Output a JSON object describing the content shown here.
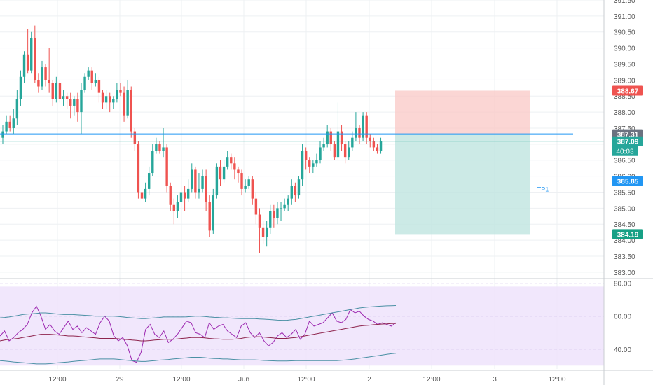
{
  "colors": {
    "bull": "#26a69a",
    "bear": "#ef5350",
    "support_line": "#2196f3",
    "price_line": "#26a69a",
    "stop_zone": "#f9c8c6",
    "target_zone": "#bfe5e0",
    "tp_line": "#2196f3",
    "rsi_line": "#9c27b0",
    "rsi_band": "#4a90a4",
    "rsi_bg": "#ede1fb",
    "axis_text": "#555555",
    "grid": "#eef0f3"
  },
  "chart_data": [
    {
      "type": "candlestick",
      "ylim": [
        382.8,
        391.5
      ],
      "y_ticks": [
        "383.00",
        "383.50",
        "384.00",
        "384.50",
        "385.00",
        "385.50",
        "386.00",
        "386.50",
        "387.00",
        "387.50",
        "388.00",
        "388.50",
        "389.00",
        "389.50",
        "390.00",
        "390.50",
        "391.00",
        "391.50"
      ],
      "x_ticks": [
        "12:00",
        "29",
        "12:00",
        "Jun",
        "12:00",
        "2",
        "12:00",
        "3",
        "12:00"
      ],
      "price_labels": {
        "stop": "388.67",
        "entry": "387.31",
        "current": "387.09",
        "countdown": "40:03",
        "tp1": "385.85",
        "target": "384.19"
      },
      "annotations": {
        "tp_label": "TP1"
      },
      "support_level": 387.31,
      "tp1_level": 385.85,
      "position": {
        "stop": 388.67,
        "entry": 387.31,
        "target": 384.19
      },
      "candles": [
        [
          387.2,
          387.4,
          387.6,
          387.0
        ],
        [
          387.4,
          387.7,
          387.9,
          387.3
        ],
        [
          387.7,
          387.5,
          387.9,
          387.4
        ],
        [
          387.5,
          387.8,
          388.1,
          387.3
        ],
        [
          387.8,
          388.4,
          388.7,
          387.6
        ],
        [
          388.4,
          389.1,
          389.3,
          388.2
        ],
        [
          389.1,
          389.8,
          389.9,
          388.9
        ],
        [
          389.8,
          389.3,
          390.6,
          389.2
        ],
        [
          389.3,
          390.3,
          390.5,
          389.2
        ],
        [
          390.3,
          389.0,
          390.7,
          388.9
        ],
        [
          389.0,
          388.8,
          389.2,
          388.6
        ],
        [
          388.8,
          389.4,
          389.6,
          388.7
        ],
        [
          389.4,
          389.0,
          389.5,
          388.8
        ],
        [
          389.0,
          388.9,
          390.0,
          388.6
        ],
        [
          388.9,
          388.4,
          389.0,
          388.2
        ],
        [
          388.4,
          388.9,
          389.1,
          388.3
        ],
        [
          388.9,
          388.4,
          389.0,
          388.3
        ],
        [
          388.4,
          388.5,
          388.7,
          388.2
        ],
        [
          388.5,
          388.4,
          388.6,
          388.1
        ],
        [
          388.4,
          388.2,
          388.6,
          387.8
        ],
        [
          388.2,
          388.4,
          388.5,
          387.9
        ],
        [
          388.4,
          388.0,
          388.6,
          387.7
        ],
        [
          388.0,
          388.7,
          388.9,
          387.3
        ],
        [
          388.7,
          389.1,
          389.2,
          388.6
        ],
        [
          389.1,
          389.3,
          389.4,
          389.0
        ],
        [
          389.3,
          388.9,
          389.4,
          388.7
        ],
        [
          388.9,
          389.0,
          389.2,
          388.8
        ],
        [
          389.0,
          388.6,
          389.1,
          388.3
        ],
        [
          388.6,
          388.3,
          388.7,
          388.1
        ],
        [
          388.3,
          388.5,
          388.7,
          388.1
        ],
        [
          388.5,
          388.3,
          388.6,
          388.0
        ],
        [
          388.3,
          388.4,
          388.5,
          388.1
        ],
        [
          388.4,
          388.7,
          388.9,
          388.3
        ],
        [
          388.7,
          388.6,
          388.9,
          388.5
        ],
        [
          388.6,
          387.9,
          388.8,
          387.7
        ],
        [
          387.9,
          388.7,
          389.0,
          387.8
        ],
        [
          388.7,
          387.4,
          388.8,
          387.2
        ],
        [
          387.4,
          387.0,
          387.5,
          386.8
        ],
        [
          387.0,
          385.5,
          387.1,
          385.3
        ],
        [
          385.5,
          385.3,
          385.7,
          385.1
        ],
        [
          385.3,
          385.6,
          385.8,
          385.2
        ],
        [
          385.6,
          386.1,
          386.3,
          385.4
        ],
        [
          386.1,
          386.8,
          387.0,
          386.0
        ],
        [
          386.8,
          387.0,
          387.2,
          386.7
        ],
        [
          387.0,
          386.8,
          387.1,
          386.7
        ],
        [
          386.8,
          386.9,
          387.5,
          386.6
        ],
        [
          386.9,
          385.7,
          387.0,
          385.5
        ],
        [
          385.7,
          385.1,
          385.8,
          384.9
        ],
        [
          385.1,
          384.9,
          385.3,
          384.5
        ],
        [
          384.9,
          385.2,
          385.4,
          384.7
        ],
        [
          385.2,
          385.5,
          385.8,
          385.0
        ],
        [
          385.5,
          385.3,
          385.7,
          384.9
        ],
        [
          385.3,
          385.6,
          385.9,
          385.2
        ],
        [
          385.6,
          386.2,
          386.4,
          385.5
        ],
        [
          386.2,
          385.5,
          386.3,
          385.3
        ],
        [
          385.5,
          385.6,
          386.1,
          385.3
        ],
        [
          385.6,
          386.0,
          386.2,
          385.5
        ],
        [
          386.0,
          385.2,
          386.2,
          384.9
        ],
        [
          385.2,
          384.3,
          385.4,
          384.1
        ],
        [
          384.3,
          385.4,
          385.6,
          384.2
        ],
        [
          385.4,
          386.3,
          386.4,
          385.3
        ],
        [
          386.3,
          385.9,
          386.5,
          385.7
        ],
        [
          385.9,
          386.3,
          386.5,
          385.8
        ],
        [
          386.3,
          386.6,
          386.8,
          386.2
        ],
        [
          386.6,
          386.4,
          386.7,
          386.2
        ],
        [
          386.4,
          386.2,
          386.6,
          385.9
        ],
        [
          386.2,
          386.1,
          386.3,
          385.8
        ],
        [
          386.1,
          385.6,
          386.2,
          385.4
        ],
        [
          385.6,
          385.7,
          385.9,
          385.5
        ],
        [
          385.7,
          385.9,
          386.0,
          385.6
        ],
        [
          385.9,
          385.3,
          386.0,
          385.1
        ],
        [
          385.3,
          384.8,
          385.5,
          384.5
        ],
        [
          384.8,
          384.4,
          385.0,
          383.6
        ],
        [
          384.4,
          384.1,
          384.6,
          383.9
        ],
        [
          384.1,
          384.4,
          384.6,
          383.8
        ],
        [
          384.4,
          384.9,
          385.1,
          384.2
        ],
        [
          384.9,
          384.7,
          385.1,
          384.4
        ],
        [
          384.7,
          385.0,
          385.2,
          384.5
        ],
        [
          385.0,
          385.0,
          385.2,
          384.6
        ],
        [
          385.0,
          385.1,
          385.3,
          384.9
        ],
        [
          385.1,
          385.3,
          385.4,
          384.9
        ],
        [
          385.3,
          385.7,
          385.9,
          385.1
        ],
        [
          385.7,
          385.4,
          385.8,
          385.2
        ],
        [
          385.4,
          385.9,
          386.0,
          385.3
        ],
        [
          385.9,
          386.8,
          387.0,
          385.7
        ],
        [
          386.8,
          386.5,
          386.9,
          386.2
        ],
        [
          386.5,
          386.3,
          386.6,
          386.1
        ],
        [
          386.3,
          386.4,
          386.5,
          386.1
        ],
        [
          386.4,
          386.5,
          386.7,
          386.3
        ],
        [
          386.5,
          386.9,
          387.1,
          386.4
        ],
        [
          386.9,
          387.0,
          387.2,
          386.8
        ],
        [
          387.0,
          387.4,
          387.6,
          386.9
        ],
        [
          387.4,
          387.0,
          387.5,
          386.8
        ],
        [
          387.0,
          386.6,
          387.1,
          386.5
        ],
        [
          386.6,
          387.4,
          388.3,
          386.5
        ],
        [
          387.4,
          387.0,
          387.6,
          386.8
        ],
        [
          387.0,
          386.6,
          387.1,
          386.4
        ],
        [
          386.6,
          386.9,
          387.1,
          386.5
        ],
        [
          386.9,
          387.2,
          387.4,
          386.8
        ],
        [
          387.2,
          387.5,
          388.0,
          387.1
        ],
        [
          387.5,
          387.2,
          387.6,
          387.0
        ],
        [
          387.2,
          387.9,
          388.0,
          387.1
        ],
        [
          387.9,
          387.2,
          388.0,
          387.0
        ],
        [
          387.2,
          387.1,
          387.3,
          386.9
        ],
        [
          387.1,
          386.9,
          387.2,
          386.8
        ],
        [
          386.9,
          386.8,
          387.0,
          386.7
        ],
        [
          386.8,
          387.1,
          387.2,
          386.7
        ]
      ]
    },
    {
      "type": "line",
      "title": "",
      "ylim": [
        28,
        82
      ],
      "y_ticks": [
        "40.00",
        "60.00",
        "80.00"
      ],
      "series": [
        {
          "values": [
            48,
            51,
            45,
            47,
            50,
            52,
            55,
            62,
            66,
            60,
            52,
            55,
            51,
            49,
            53,
            57,
            52,
            54,
            50,
            53,
            51,
            49,
            56,
            60,
            57,
            48,
            45,
            47,
            42,
            33,
            32,
            38,
            52,
            55,
            49,
            47,
            51,
            44,
            46,
            49,
            53,
            57,
            56,
            50,
            49,
            47,
            56,
            52,
            54,
            55,
            51,
            49,
            47,
            54,
            56,
            50,
            47,
            50,
            45,
            42,
            44,
            48,
            50,
            47,
            49,
            52,
            46,
            49,
            57,
            54,
            55,
            56,
            59,
            62,
            57,
            56,
            58,
            64,
            62,
            63,
            60,
            58,
            57,
            55,
            56,
            55,
            54,
            56
          ]
        },
        {
          "values": [
            45,
            45.5,
            46,
            46.2,
            46.5,
            47,
            47.5,
            48,
            48.5,
            49,
            49,
            49,
            48.8,
            48.5,
            48.3,
            48,
            48,
            47.8,
            47.5,
            47.3,
            47,
            46.8,
            46.5,
            46.5,
            46.5,
            46.5,
            46.3,
            46,
            45.8,
            45.5,
            45.3,
            45,
            45,
            45.2,
            45.5,
            45.7,
            46,
            46,
            46,
            46.2,
            46.5,
            46.7,
            47,
            47,
            47,
            46.8,
            46.5,
            46.3,
            46.2,
            46,
            46,
            46,
            46.2,
            46.5,
            47,
            47.3,
            47.5,
            47.5,
            47.3,
            47,
            46.8,
            46.5,
            46.5,
            46.5,
            46.8,
            47,
            47.5,
            48,
            48.5,
            49,
            49.5,
            50,
            50.5,
            51,
            51.5,
            52,
            52.5,
            53,
            53.5,
            54,
            54.3,
            54.5,
            54.8,
            55,
            55.2,
            55.3,
            55.5,
            55.6
          ]
        },
        {
          "values": [
            59,
            59.2,
            59.5,
            60,
            60.5,
            61,
            61.3,
            61.5,
            61.7,
            62,
            62,
            61.8,
            61.5,
            61.2,
            61,
            61,
            61,
            60.8,
            60.6,
            60.5,
            60.3,
            60,
            60,
            60,
            60,
            60,
            59.8,
            59.5,
            59.2,
            59,
            58.8,
            58.5,
            58.5,
            58.8,
            59,
            59.2,
            59.5,
            59.5,
            59.5,
            59.5,
            59.5,
            59.6,
            59.8,
            60,
            60,
            59.8,
            59.5,
            59.3,
            59.2,
            59,
            59,
            58.8,
            58.6,
            58.5,
            58.5,
            58.5,
            58.5,
            58.3,
            58.2,
            58,
            57.8,
            57.6,
            57.5,
            57.5,
            57.8,
            58,
            58.5,
            59,
            59.5,
            60,
            60.5,
            61,
            61.5,
            62,
            62.5,
            63,
            63.5,
            64,
            64.5,
            65,
            65.3,
            65.6,
            65.8,
            66,
            66.2,
            66.3,
            66.4,
            66.5
          ]
        },
        {
          "values": [
            33,
            32.8,
            32.5,
            32.2,
            32,
            31.8,
            31.5,
            31.3,
            31,
            31,
            31,
            31.2,
            31.5,
            31.8,
            32,
            32.2,
            32.5,
            32.8,
            33,
            33.2,
            33.5,
            33.8,
            34,
            34,
            34,
            34,
            33.8,
            33.5,
            33.2,
            33,
            32.7,
            32.5,
            32.5,
            32.8,
            33,
            33.3,
            33.5,
            33.7,
            34,
            34.2,
            34.5,
            34.7,
            35,
            35,
            35,
            34.8,
            34.5,
            34.3,
            34.2,
            34,
            34,
            33.8,
            33.6,
            33.5,
            33.5,
            33.5,
            33.5,
            33.3,
            33.1,
            33,
            32.9,
            32.8,
            32.8,
            32.8,
            32.9,
            33,
            33,
            33,
            33,
            33,
            33,
            33,
            33,
            33,
            33,
            33.2,
            33.4,
            33.7,
            34,
            34.4,
            34.8,
            35.2,
            35.6,
            36,
            36.4,
            36.8,
            37.2,
            37.5
          ]
        }
      ]
    }
  ]
}
